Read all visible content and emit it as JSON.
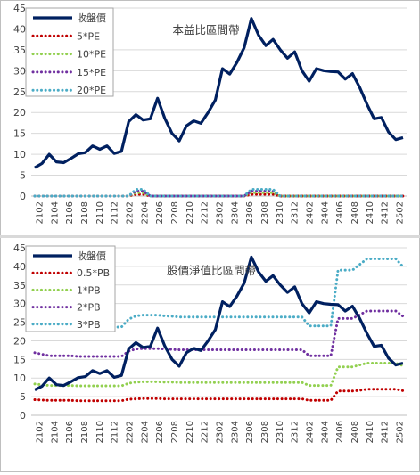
{
  "chart_data": [
    {
      "type": "line",
      "title": "本益比區間帶",
      "xlabel": "",
      "ylabel": "",
      "ylim": [
        0,
        45
      ],
      "yticks": [
        0,
        5,
        10,
        15,
        20,
        25,
        30,
        35,
        40,
        45
      ],
      "x_tick_labels": [
        "2102",
        "2104",
        "2106",
        "2108",
        "2110",
        "2112",
        "2202",
        "2204",
        "2206",
        "2208",
        "2210",
        "2212",
        "2302",
        "2304",
        "2306",
        "2308",
        "2310",
        "2312",
        "2402",
        "2404",
        "2406",
        "2408",
        "2410",
        "2412",
        "2502"
      ],
      "grid": "horizontal",
      "legend_position": "top-left",
      "series": [
        {
          "name": "收盤價",
          "color": "#002060",
          "style": "solid",
          "values": [
            6.8,
            7.8,
            10.0,
            8.2,
            8.0,
            9.0,
            10.1,
            10.4,
            12.0,
            11.2,
            12.0,
            10.2,
            10.7,
            17.8,
            19.5,
            18.2,
            18.5,
            23.4,
            18.6,
            15.0,
            13.2,
            16.8,
            18.0,
            17.4,
            20.0,
            23.0,
            30.5,
            29.2,
            32.0,
            35.5,
            42.5,
            38.5,
            36.0,
            37.5,
            35.0,
            33.0,
            34.5,
            30.0,
            27.5,
            30.5,
            30.0,
            29.8,
            29.7,
            28.0,
            29.3,
            26.0,
            22.0,
            18.5,
            18.8,
            15.3,
            13.5,
            14.0
          ]
        },
        {
          "name": "5*PE",
          "color": "#c00000",
          "style": "dotted",
          "values": [
            0,
            0,
            0,
            0,
            0,
            0,
            0,
            0,
            0,
            0,
            0,
            0,
            0,
            0,
            0.4,
            0.4,
            0,
            0,
            0,
            0,
            0,
            0,
            0,
            0,
            0,
            0,
            0,
            0,
            0,
            0,
            0.4,
            0.4,
            0.4,
            0.4,
            0,
            0,
            0,
            0,
            0,
            0,
            0,
            0,
            0,
            0,
            0,
            0,
            0,
            0,
            0,
            0,
            0,
            0
          ]
        },
        {
          "name": "10*PE",
          "color": "#92d050",
          "style": "dotted",
          "values": [
            0,
            0,
            0,
            0,
            0,
            0,
            0,
            0,
            0,
            0,
            0,
            0,
            0,
            0,
            0.8,
            0.8,
            0,
            0,
            0,
            0,
            0,
            0,
            0,
            0,
            0,
            0,
            0,
            0,
            0,
            0,
            0.8,
            0.8,
            0.8,
            0.8,
            0,
            0,
            0,
            0,
            0,
            0,
            0,
            0,
            0,
            0,
            0,
            0,
            0,
            0,
            0,
            0,
            0,
            0
          ]
        },
        {
          "name": "15*PE",
          "color": "#7030a0",
          "style": "dotted",
          "values": [
            0,
            0,
            0,
            0,
            0,
            0,
            0,
            0,
            0,
            0,
            0,
            0,
            0,
            0,
            1.2,
            1.2,
            0,
            0,
            0,
            0,
            0,
            0,
            0,
            0,
            0,
            0,
            0,
            0,
            0,
            0,
            1.2,
            1.2,
            1.2,
            1.2,
            0,
            0,
            0,
            0,
            0,
            0,
            0,
            0,
            0,
            0,
            0,
            0,
            0,
            0,
            0,
            0,
            0,
            0
          ]
        },
        {
          "name": "20*PE",
          "color": "#4bacc6",
          "style": "dotted",
          "values": [
            0,
            0,
            0,
            0,
            0,
            0,
            0,
            0,
            0,
            0,
            0,
            0,
            0,
            0,
            1.6,
            1.6,
            0,
            0,
            0,
            0,
            0,
            0,
            0,
            0,
            0,
            0,
            0,
            0,
            0,
            0,
            1.6,
            1.6,
            1.6,
            1.6,
            0,
            0,
            0,
            0,
            0,
            0,
            0,
            0,
            0,
            0,
            0,
            0,
            0,
            0,
            0,
            0,
            0,
            0
          ]
        }
      ]
    },
    {
      "type": "line",
      "title": "股價淨值比區間帶",
      "xlabel": "",
      "ylabel": "",
      "ylim": [
        0,
        45
      ],
      "yticks": [
        0,
        5,
        10,
        15,
        20,
        25,
        30,
        35,
        40,
        45
      ],
      "x_tick_labels": [
        "2102",
        "2104",
        "2106",
        "2108",
        "2110",
        "2112",
        "2202",
        "2204",
        "2206",
        "2208",
        "2210",
        "2212",
        "2302",
        "2304",
        "2306",
        "2308",
        "2310",
        "2312",
        "2402",
        "2404",
        "2406",
        "2408",
        "2410",
        "2412",
        "2502"
      ],
      "grid": "horizontal",
      "legend_position": "top-left",
      "series": [
        {
          "name": "收盤價",
          "color": "#002060",
          "style": "solid",
          "values": [
            6.8,
            7.8,
            10.0,
            8.2,
            8.0,
            9.0,
            10.1,
            10.4,
            12.0,
            11.2,
            12.0,
            10.2,
            10.7,
            17.8,
            19.5,
            18.2,
            18.5,
            23.4,
            18.6,
            15.0,
            13.2,
            16.8,
            18.0,
            17.4,
            20.0,
            23.0,
            30.5,
            29.2,
            32.0,
            35.5,
            42.5,
            38.5,
            36.0,
            37.5,
            35.0,
            33.0,
            34.5,
            30.0,
            27.5,
            30.5,
            30.0,
            29.8,
            29.7,
            28.0,
            29.3,
            26.0,
            22.0,
            18.5,
            18.8,
            15.3,
            13.5,
            14.0
          ]
        },
        {
          "name": "0.5*PB",
          "color": "#c00000",
          "style": "dotted",
          "values": [
            4.2,
            4.1,
            4.0,
            4.0,
            4.0,
            4.0,
            3.9,
            3.9,
            3.9,
            3.9,
            3.9,
            3.9,
            3.9,
            4.3,
            4.4,
            4.5,
            4.5,
            4.5,
            4.4,
            4.4,
            4.4,
            4.4,
            4.4,
            4.4,
            4.4,
            4.4,
            4.4,
            4.4,
            4.4,
            4.4,
            4.4,
            4.4,
            4.4,
            4.4,
            4.4,
            4.4,
            4.4,
            4.4,
            4.0,
            4.0,
            4.0,
            4.0,
            6.5,
            6.5,
            6.5,
            6.7,
            7.0,
            7.0,
            7.0,
            7.0,
            7.0,
            6.6
          ]
        },
        {
          "name": "1*PB",
          "color": "#92d050",
          "style": "dotted",
          "values": [
            8.4,
            8.2,
            8.0,
            8.0,
            8.0,
            8.0,
            7.9,
            7.9,
            7.9,
            7.9,
            7.9,
            7.9,
            7.9,
            8.6,
            8.9,
            9.0,
            9.0,
            9.0,
            8.9,
            8.9,
            8.8,
            8.8,
            8.8,
            8.8,
            8.8,
            8.8,
            8.8,
            8.8,
            8.8,
            8.8,
            8.8,
            8.8,
            8.8,
            8.8,
            8.8,
            8.8,
            8.8,
            8.8,
            8.0,
            8.0,
            8.0,
            8.0,
            13.0,
            13.0,
            13.0,
            13.5,
            14.0,
            14.0,
            14.0,
            14.0,
            14.0,
            13.3
          ]
        },
        {
          "name": "2*PB",
          "color": "#7030a0",
          "style": "dotted",
          "values": [
            16.8,
            16.4,
            16.0,
            16.0,
            16.0,
            16.0,
            15.8,
            15.8,
            15.8,
            15.8,
            15.8,
            15.8,
            15.8,
            17.2,
            17.8,
            17.9,
            17.9,
            17.9,
            17.8,
            17.7,
            17.6,
            17.6,
            17.6,
            17.6,
            17.6,
            17.6,
            17.6,
            17.6,
            17.6,
            17.6,
            17.6,
            17.6,
            17.6,
            17.6,
            17.6,
            17.6,
            17.6,
            17.6,
            16.0,
            16.0,
            16.0,
            16.0,
            26.0,
            26.0,
            26.0,
            27.0,
            28.0,
            28.0,
            28.0,
            28.0,
            28.0,
            26.6
          ]
        },
        {
          "name": "3*PB",
          "color": "#4bacc6",
          "style": "dotted",
          "values": [
            25.2,
            24.6,
            24.0,
            24.0,
            24.0,
            24.0,
            23.7,
            23.7,
            23.7,
            23.7,
            23.7,
            23.7,
            23.7,
            25.8,
            26.7,
            26.9,
            26.9,
            26.9,
            26.7,
            26.6,
            26.4,
            26.4,
            26.4,
            26.4,
            26.4,
            26.4,
            26.4,
            26.4,
            26.4,
            26.4,
            26.4,
            26.4,
            26.4,
            26.4,
            26.4,
            26.4,
            26.4,
            26.4,
            24.0,
            24.0,
            24.0,
            24.0,
            39.0,
            39.0,
            39.0,
            40.5,
            42.0,
            42.0,
            42.0,
            42.0,
            42.0,
            39.9
          ]
        }
      ]
    }
  ]
}
